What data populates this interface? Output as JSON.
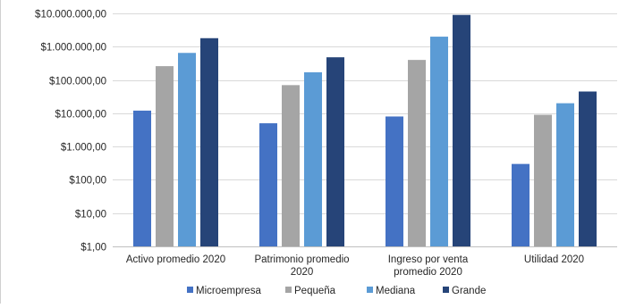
{
  "chart_data": {
    "type": "bar",
    "y_scale": "log",
    "ylim": [
      1,
      10000000
    ],
    "y_ticks": [
      {
        "value": 10000000,
        "label": "$10.000.000,00"
      },
      {
        "value": 1000000,
        "label": "$1.000.000,00"
      },
      {
        "value": 100000,
        "label": "$100.000,00"
      },
      {
        "value": 10000,
        "label": "$10.000,00"
      },
      {
        "value": 1000,
        "label": "$1.000,00"
      },
      {
        "value": 100,
        "label": "$100,00"
      },
      {
        "value": 10,
        "label": "$10,00"
      },
      {
        "value": 1,
        "label": "$1,00"
      }
    ],
    "categories": [
      [
        "Activo promedio 2020"
      ],
      [
        "Patrimonio promedio",
        "2020"
      ],
      [
        "Ingreso por venta",
        "promedio 2020"
      ],
      [
        "Utilidad 2020"
      ]
    ],
    "series": [
      {
        "name": "Microempresa",
        "color": "#4472c4",
        "values": [
          12000,
          5000,
          8000,
          300
        ]
      },
      {
        "name": "Pequeña",
        "color": "#a5a5a5",
        "values": [
          260000,
          70000,
          400000,
          9000
        ]
      },
      {
        "name": "Mediana",
        "color": "#5b9bd5",
        "values": [
          650000,
          170000,
          2000000,
          20000
        ]
      },
      {
        "name": "Grande",
        "color": "#264478",
        "values": [
          1800000,
          480000,
          9000000,
          45000
        ]
      }
    ],
    "grid": true,
    "legend_position": "bottom"
  }
}
